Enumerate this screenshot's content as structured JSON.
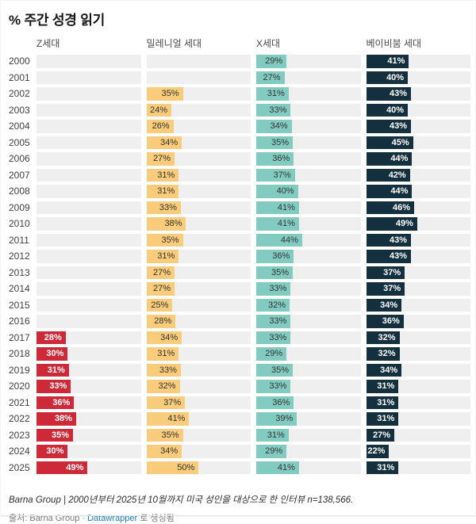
{
  "title": "% 주간 성경 읽기",
  "chart_data": {
    "type": "bar",
    "orientation": "horizontal",
    "layout": "split bars: four generation columns, one row per year, axis hidden, value labels inside bar ends",
    "title": "% 주간 성경 읽기",
    "value_suffix": "%",
    "xlim": [
      0,
      100
    ],
    "grid": false,
    "track_color": "#efefef",
    "categories": [
      "2000",
      "2001",
      "2002",
      "2003",
      "2004",
      "2005",
      "2006",
      "2007",
      "2008",
      "2009",
      "2010",
      "2011",
      "2012",
      "2013",
      "2014",
      "2015",
      "2016",
      "2017",
      "2018",
      "2019",
      "2020",
      "2021",
      "2022",
      "2023",
      "2024",
      "2025"
    ],
    "series": [
      {
        "name": "Z세대",
        "color": "#ce2938",
        "label_style": "light",
        "values": [
          null,
          null,
          null,
          null,
          null,
          null,
          null,
          null,
          null,
          null,
          null,
          null,
          null,
          null,
          null,
          null,
          null,
          28,
          30,
          31,
          33,
          36,
          38,
          35,
          30,
          49
        ]
      },
      {
        "name": "밀레니얼 세대",
        "color": "#f8cc7a",
        "label_style": "dark",
        "values": [
          null,
          null,
          35,
          24,
          26,
          34,
          27,
          31,
          31,
          33,
          38,
          35,
          31,
          27,
          27,
          25,
          28,
          34,
          31,
          33,
          32,
          37,
          41,
          35,
          34,
          50
        ]
      },
      {
        "name": "X세대",
        "color": "#82cbc1",
        "label_style": "dark",
        "values": [
          29,
          27,
          31,
          33,
          34,
          35,
          36,
          37,
          40,
          41,
          41,
          44,
          36,
          35,
          33,
          32,
          33,
          33,
          29,
          35,
          33,
          36,
          39,
          31,
          29,
          41
        ]
      },
      {
        "name": "베이비붐 세대",
        "color": "#14303e",
        "label_style": "light",
        "values": [
          41,
          40,
          43,
          40,
          43,
          45,
          44,
          42,
          44,
          46,
          49,
          43,
          43,
          37,
          37,
          34,
          36,
          32,
          32,
          34,
          31,
          31,
          31,
          27,
          22,
          31
        ]
      }
    ]
  },
  "footer": {
    "footnote": "Barna Group | 2000년부터 2025년 10월까지 미국 성인을 대상으로 한 인터뷰 n=138,566.",
    "source_label": "출처: Barna Group",
    "separator": "·",
    "attribution_link": "Datawrapper",
    "attribution_suffix": "로 생성됨"
  },
  "colors": {
    "background": "#ffffff",
    "link": "#1d7cc4",
    "track": "#efefef"
  }
}
